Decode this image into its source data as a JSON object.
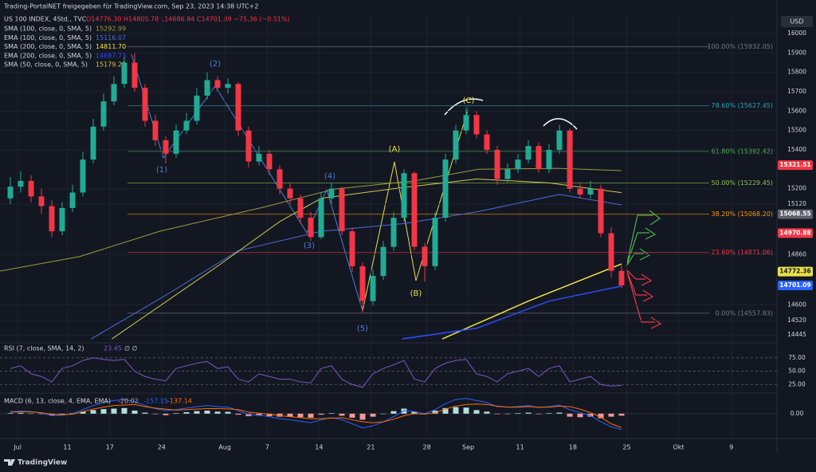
{
  "header": {
    "shared_by": "Trading-PortalNET freigegeben für TradingView.com, Sep 23, 2023 14:38 UTC+2",
    "currency": "USD",
    "brand": "TradingView"
  },
  "annotations": [
    "(1)",
    "(2)",
    "(3)",
    "(4)",
    "(5)",
    "(A)",
    "(B)",
    "(C)"
  ],
  "chart_data": {
    "type": "candlestick",
    "title": "US 100 INDEX, 4Std., TVC",
    "ohlc_line": "O14776.30 H14805.78 L14686.84 C14701.09 −75.36 (−0.51%)",
    "up_color": "#22ab94",
    "down_color": "#f23645",
    "candles": [
      [
        15150,
        15260,
        15120,
        15210
      ],
      [
        15210,
        15290,
        15180,
        15240
      ],
      [
        15240,
        15270,
        15130,
        15160
      ],
      [
        15160,
        15200,
        15070,
        15110
      ],
      [
        15110,
        15140,
        14950,
        14980
      ],
      [
        14980,
        15130,
        14960,
        15100
      ],
      [
        15100,
        15220,
        15080,
        15180
      ],
      [
        15180,
        15390,
        15160,
        15350
      ],
      [
        15350,
        15560,
        15330,
        15520
      ],
      [
        15520,
        15690,
        15500,
        15650
      ],
      [
        15650,
        15780,
        15630,
        15740
      ],
      [
        15740,
        15880,
        15720,
        15850
      ],
      [
        15850,
        15900,
        15700,
        15720
      ],
      [
        15720,
        15740,
        15520,
        15550
      ],
      [
        15550,
        15580,
        15420,
        15450
      ],
      [
        15450,
        15470,
        15330,
        15380
      ],
      [
        15380,
        15530,
        15360,
        15500
      ],
      [
        15500,
        15590,
        15480,
        15550
      ],
      [
        15550,
        15720,
        15530,
        15680
      ],
      [
        15680,
        15800,
        15660,
        15760
      ],
      [
        15760,
        15780,
        15700,
        15720
      ],
      [
        15720,
        15770,
        15690,
        15740
      ],
      [
        15740,
        15750,
        15470,
        15500
      ],
      [
        15500,
        15520,
        15310,
        15340
      ],
      [
        15340,
        15420,
        15320,
        15380
      ],
      [
        15380,
        15400,
        15270,
        15300
      ],
      [
        15300,
        15320,
        15170,
        15200
      ],
      [
        15200,
        15230,
        15120,
        15150
      ],
      [
        15150,
        15170,
        15020,
        15050
      ],
      [
        15050,
        15080,
        14930,
        14950
      ],
      [
        14950,
        15180,
        14940,
        15150
      ],
      [
        15150,
        15230,
        15120,
        15200
      ],
      [
        15200,
        15210,
        14960,
        14980
      ],
      [
        14980,
        15000,
        14770,
        14800
      ],
      [
        14800,
        14820,
        14560,
        14620
      ],
      [
        14620,
        14780,
        14600,
        14750
      ],
      [
        14750,
        14930,
        14730,
        14900
      ],
      [
        14900,
        15080,
        14880,
        15050
      ],
      [
        15050,
        15300,
        15030,
        15280
      ],
      [
        15280,
        15290,
        14880,
        14900
      ],
      [
        14900,
        14920,
        14720,
        14800
      ],
      [
        14800,
        15080,
        14780,
        15050
      ],
      [
        15050,
        15380,
        15030,
        15350
      ],
      [
        15350,
        15530,
        15330,
        15500
      ],
      [
        15500,
        15620,
        15480,
        15580
      ],
      [
        15580,
        15600,
        15460,
        15480
      ],
      [
        15480,
        15500,
        15380,
        15400
      ],
      [
        15400,
        15420,
        15220,
        15250
      ],
      [
        15250,
        15330,
        15230,
        15300
      ],
      [
        15300,
        15380,
        15280,
        15350
      ],
      [
        15350,
        15450,
        15330,
        15420
      ],
      [
        15420,
        15440,
        15280,
        15300
      ],
      [
        15300,
        15430,
        15280,
        15400
      ],
      [
        15400,
        15530,
        15380,
        15500
      ],
      [
        15500,
        15510,
        15180,
        15200
      ],
      [
        15200,
        15230,
        15150,
        15170
      ],
      [
        15170,
        15240,
        15150,
        15200
      ],
      [
        15200,
        15220,
        14950,
        14970
      ],
      [
        14970,
        15000,
        14740,
        14776.3
      ],
      [
        14776.3,
        14805.78,
        14686.84,
        14701.09
      ]
    ],
    "xlim": [
      -1,
      74
    ],
    "xticks": [
      {
        "value": 0.7,
        "label": "Jul"
      },
      {
        "value": 5.5,
        "label": "11"
      },
      {
        "value": 9.6,
        "label": "17"
      },
      {
        "value": 14.6,
        "label": "24"
      },
      {
        "value": 20.7,
        "label": "Aug"
      },
      {
        "value": 24.8,
        "label": "7"
      },
      {
        "value": 29.8,
        "label": "14"
      },
      {
        "value": 34.8,
        "label": "21"
      },
      {
        "value": 40.2,
        "label": "28"
      },
      {
        "value": 44.2,
        "label": "Sep"
      },
      {
        "value": 49.2,
        "label": "11"
      },
      {
        "value": 54.3,
        "label": "18"
      },
      {
        "value": 59.5,
        "label": "25"
      },
      {
        "value": 64.5,
        "label": "Okt"
      },
      {
        "value": 69.6,
        "label": "9"
      }
    ],
    "ylim": [
      14413,
      16099
    ],
    "yticks": [
      16000,
      15900,
      15800,
      15700,
      15600,
      15500,
      15400,
      15200,
      15120,
      14860,
      14600,
      14520,
      14445
    ],
    "grid": true,
    "price_labels": [
      {
        "value": 15321.51,
        "color": "#f23645"
      },
      {
        "value": 15068.55,
        "color": "#5d606b"
      },
      {
        "value": 14970.88,
        "color": "#f23645"
      },
      {
        "value": 14772.36,
        "color": "#e8e04a"
      },
      {
        "value": 14701.09,
        "color": "#2962ff"
      }
    ],
    "fib_levels": [
      {
        "value": 15932.05,
        "label": "100.00% (15932.05)",
        "color": "#787b86"
      },
      {
        "value": 15627.45,
        "label": "78.60% (15627.45)",
        "color": "#26a6b3"
      },
      {
        "value": 15392.42,
        "label": "61.80% (15392.42)",
        "color": "#4caf50"
      },
      {
        "value": 15229.45,
        "label": "50.00% (15229.45)",
        "color": "#8bc34a"
      },
      {
        "value": 15068.2,
        "label": "38.20% (15068.20)",
        "color": "#ff9800"
      },
      {
        "value": 14871.06,
        "label": "23.60% (14871.06)",
        "color": "#f23645"
      },
      {
        "value": 14557.83,
        "label": "0.00% (14557.83)",
        "color": "#787b86"
      }
    ],
    "series": [
      {
        "name": "SMA (100, close, 0, SMA, 5)",
        "color": "#9e9a3c",
        "last": 15292.99,
        "x": [
          -1,
          6.7,
          14.4,
          24.4,
          31.3,
          39,
          45.2,
          52.8,
          59
        ],
        "values": [
          14775,
          14850,
          14980,
          15104,
          15198,
          15240,
          15300,
          15305,
          15292.99
        ]
      },
      {
        "name": "EMA (100, close, 0, SMA, 5)",
        "color": "#4a6fd8",
        "last": 15116.07,
        "x": [
          7.8,
          15,
          22,
          30,
          38,
          45,
          53,
          59
        ],
        "values": [
          14425,
          14650,
          14880,
          14980,
          15020,
          15080,
          15170,
          15116.07
        ]
      },
      {
        "name": "SMA (200, close, 0, SMA, 5)",
        "color": "#f0e442",
        "last": 14811.7,
        "last_label": "14811.70",
        "x": [
          41.7,
          50,
          59
        ],
        "values": [
          14425,
          14620,
          14811.7
        ]
      },
      {
        "name": "EMA (200, close, 0, SMA, 5)",
        "color": "#2b4cff",
        "last": 14697.73,
        "x": [
          37.8,
          45,
          52,
          59
        ],
        "values": [
          14425,
          14480,
          14620,
          14697.73
        ]
      },
      {
        "name": "SMA (50, close, 0, SMA, 5)",
        "color": "#d4c84a",
        "last": 15179.22,
        "x": [
          9.8,
          20,
          26,
          30,
          37,
          45,
          52,
          59
        ],
        "values": [
          14425,
          14800,
          15030,
          15150,
          15200,
          15250,
          15230,
          15179.22
        ]
      }
    ],
    "rsi": {
      "name": "RSI (7, close, SMA, 14, 2)",
      "last": 23.45,
      "extra": "∅ ∅",
      "color": "#7e57c2",
      "ylim": [
        12,
        100
      ],
      "yticks": [
        {
          "value": 75,
          "label": "75.00"
        },
        {
          "value": 50,
          "label": "50.00"
        },
        {
          "value": 25,
          "label": "25.00"
        }
      ],
      "values": [
        55,
        60,
        45,
        40,
        30,
        55,
        60,
        70,
        75,
        72,
        70,
        72,
        50,
        40,
        35,
        32,
        55,
        60,
        65,
        68,
        55,
        58,
        35,
        30,
        45,
        40,
        35,
        35,
        30,
        28,
        55,
        60,
        35,
        25,
        20,
        45,
        55,
        62,
        70,
        35,
        30,
        55,
        65,
        70,
        72,
        45,
        40,
        30,
        45,
        50,
        55,
        40,
        55,
        60,
        30,
        35,
        40,
        25,
        22,
        23.45
      ]
    },
    "macd": {
      "name": "MACD (6, 13, close, 4, EMA, EMA)",
      "ylim": [
        -230,
        180
      ],
      "yticks": [
        {
          "value": 0,
          "label": "0.00"
        }
      ],
      "hist_last": -20.02,
      "macd_last": -157.15,
      "signal_last": -137.14,
      "hist_color": "#ef9a9a",
      "macd_color": "#2962ff",
      "signal_color": "#ff6d00",
      "hist": [
        5,
        8,
        2,
        -5,
        -15,
        -5,
        5,
        20,
        35,
        45,
        50,
        55,
        30,
        10,
        -5,
        -15,
        5,
        15,
        25,
        30,
        20,
        18,
        -10,
        -25,
        -20,
        -25,
        -30,
        -30,
        -35,
        -40,
        -10,
        5,
        -20,
        -40,
        -60,
        -30,
        0,
        25,
        50,
        20,
        5,
        30,
        55,
        65,
        60,
        35,
        20,
        -5,
        0,
        5,
        10,
        -5,
        5,
        10,
        -30,
        -35,
        -30,
        -45,
        -30,
        -20.02
      ],
      "macd": [
        20,
        25,
        20,
        5,
        -20,
        -15,
        0,
        40,
        80,
        110,
        130,
        140,
        120,
        80,
        50,
        30,
        40,
        55,
        70,
        80,
        70,
        65,
        30,
        -10,
        -15,
        -30,
        -50,
        -60,
        -75,
        -90,
        -60,
        -40,
        -60,
        -100,
        -140,
        -120,
        -80,
        -30,
        30,
        20,
        0,
        40,
        100,
        140,
        150,
        130,
        110,
        70,
        65,
        70,
        80,
        60,
        70,
        85,
        40,
        10,
        -20,
        -80,
        -130,
        -157.15
      ],
      "signal": [
        15,
        17,
        18,
        10,
        -5,
        -10,
        -5,
        20,
        45,
        65,
        80,
        85,
        90,
        70,
        55,
        45,
        35,
        40,
        45,
        50,
        50,
        47,
        40,
        15,
        5,
        -5,
        -20,
        -30,
        -40,
        -50,
        -50,
        -45,
        -40,
        -60,
        -80,
        -90,
        -80,
        -55,
        -20,
        0,
        -5,
        10,
        45,
        75,
        90,
        95,
        90,
        75,
        65,
        65,
        70,
        65,
        65,
        75,
        70,
        45,
        10,
        -35,
        -100,
        -137.14
      ]
    }
  }
}
